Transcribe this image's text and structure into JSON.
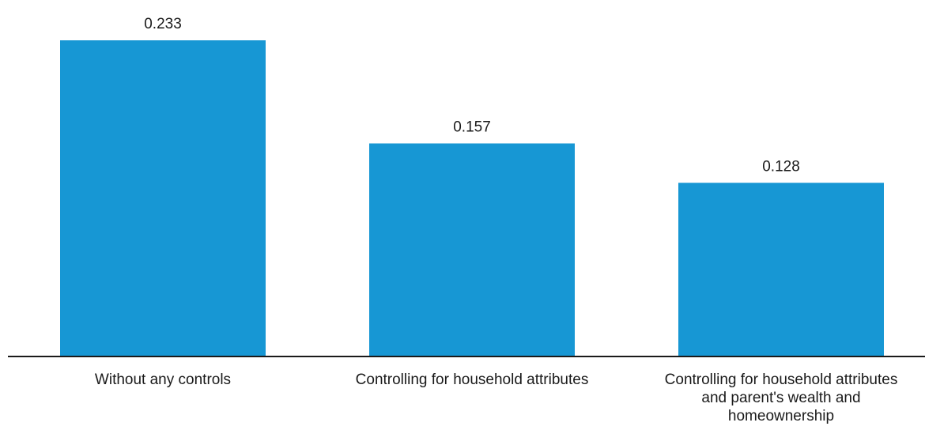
{
  "chart_data": {
    "type": "bar",
    "categories": [
      "Without any controls",
      "Controlling for household attributes",
      "Controlling for household attributes and parent's wealth and homeownership"
    ],
    "category_lines": [
      [
        "Without any controls"
      ],
      [
        "Controlling for household attributes"
      ],
      [
        "Controlling for household attributes",
        "and parent's wealth and",
        "homeownership"
      ]
    ],
    "values": [
      0.233,
      0.157,
      0.128
    ],
    "value_labels": [
      "0.233",
      "0.157",
      "0.128"
    ],
    "title": "",
    "xlabel": "",
    "ylabel": "",
    "ylim": [
      0,
      0.233
    ],
    "grid": false,
    "legend": "none",
    "colors": {
      "bar": "#1797d4",
      "axis": "#1a1a1a",
      "text": "#1a1a1a"
    }
  }
}
